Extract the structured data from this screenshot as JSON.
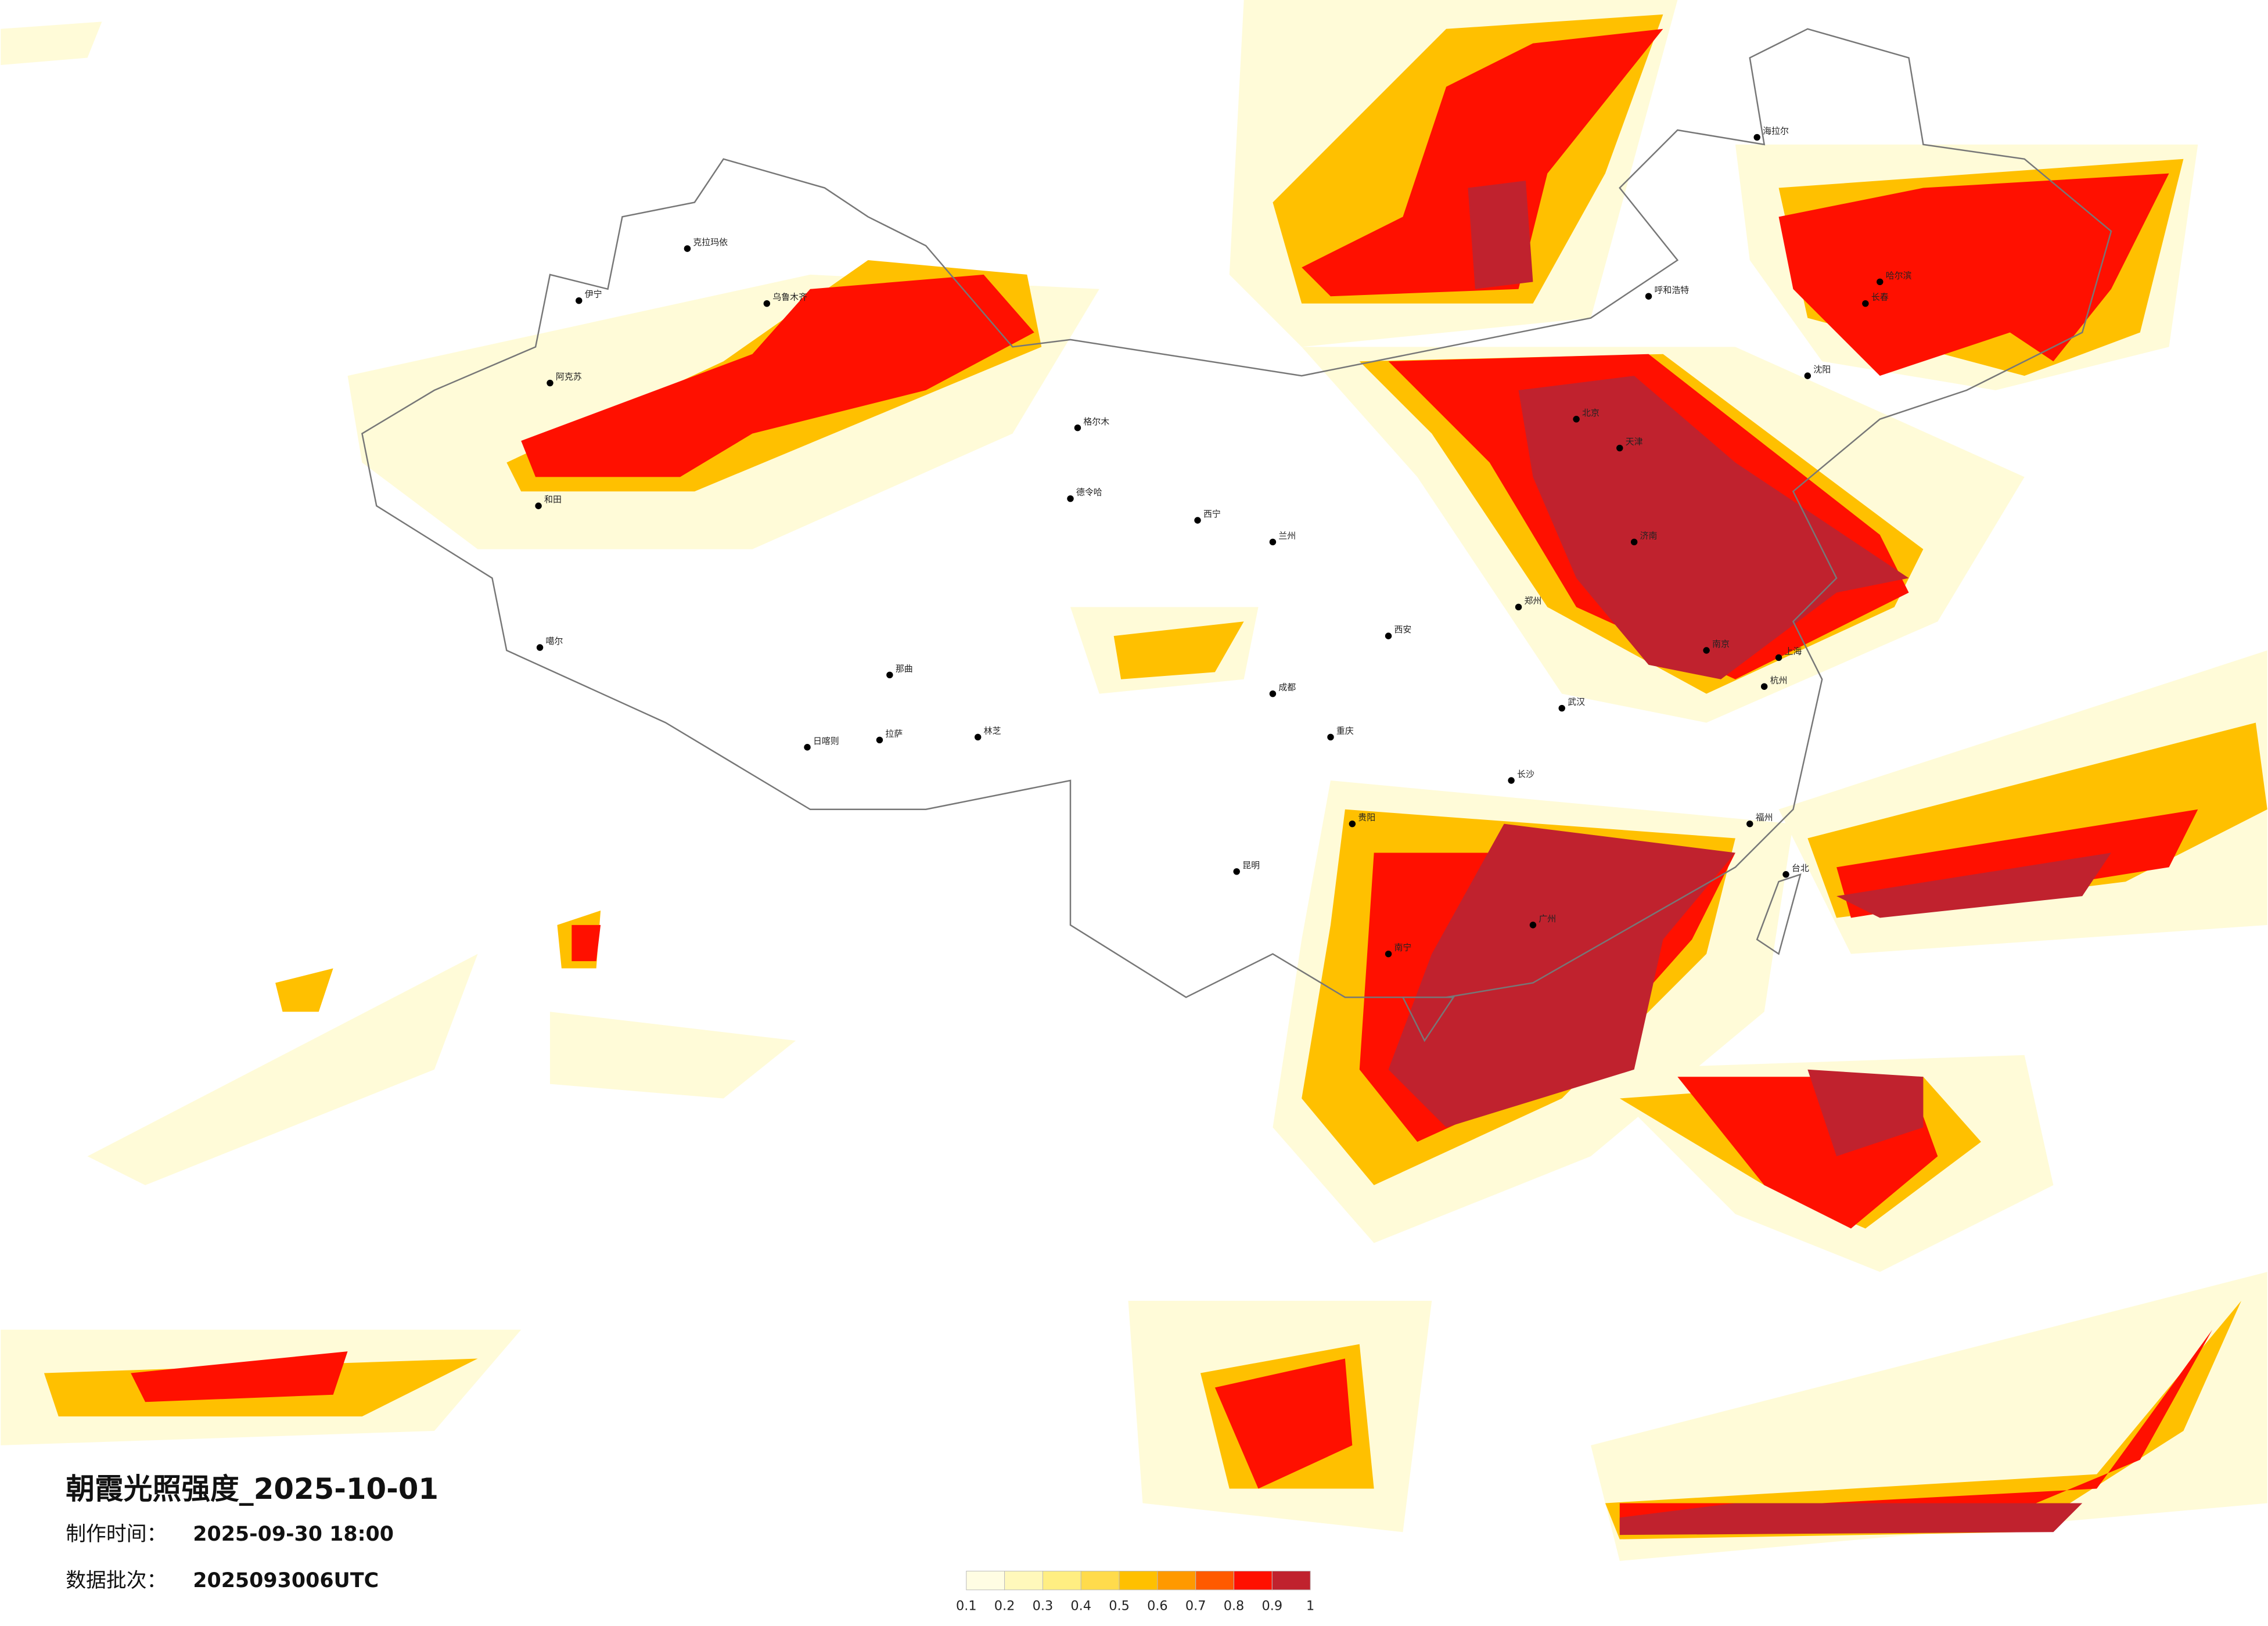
{
  "title": "朝霞光照强度_2025-10-01",
  "info": {
    "made_label": "制作时间：",
    "made_value": "2025-09-30 18:00",
    "batch_label": "数据批次：",
    "batch_value": "2025093006UTC"
  },
  "colorbar": {
    "colors": [
      "#fffde3",
      "#fff8bb",
      "#ffee82",
      "#ffdb4c",
      "#ffc000",
      "#ff9900",
      "#ff5a00",
      "#ff1000",
      "#c0222e"
    ],
    "ticks": [
      0.1,
      0.2,
      0.3,
      0.4,
      0.5,
      0.6,
      0.7,
      0.8,
      0.9,
      1
    ]
  },
  "cities": [
    "克拉玛依",
    "乌鲁木齐",
    "伊宁",
    "阿克苏",
    "和田",
    "噶尔",
    "日喀则",
    "拉萨",
    "那曲",
    "林芝",
    "格尔木",
    "德令哈",
    "西宁",
    "兰州",
    "成都",
    "重庆",
    "昆明",
    "贵阳",
    "南宁",
    "广州",
    "武汉",
    "长沙",
    "郑州",
    "西安",
    "北京",
    "天津",
    "济南",
    "南京",
    "上海",
    "杭州",
    "福州",
    "台北",
    "哈尔滨",
    "长春",
    "沈阳",
    "呼和浩特",
    "海拉尔"
  ]
}
